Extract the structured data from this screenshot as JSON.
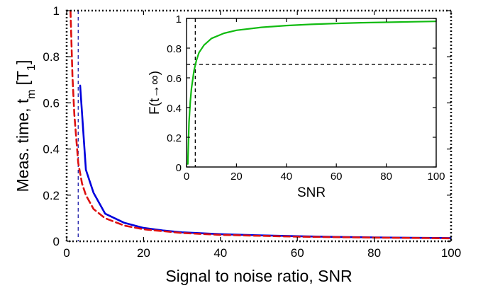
{
  "chart_data": [
    {
      "type": "line",
      "xlabel": "Signal to noise ratio, SNR",
      "ylabel": "Meas. time, t",
      "ylabel_sub": "m",
      "ylabel_unit": "T",
      "ylabel_unit_sub": "1",
      "xlim": [
        0,
        100
      ],
      "ylim": [
        0,
        1
      ],
      "xticks": [
        0,
        20,
        40,
        60,
        80,
        100
      ],
      "yticks": [
        0,
        0.2,
        0.4,
        0.6,
        0.8,
        1
      ],
      "xtick_labels": [
        "0",
        "20",
        "40",
        "60",
        "80",
        "100"
      ],
      "ytick_labels": [
        "0",
        "0.2",
        "0.4",
        "0.6",
        "0.8",
        "1"
      ],
      "grid": false,
      "vline": {
        "x": 3,
        "style": "dashed",
        "color": "#1a1aa8"
      },
      "series": [
        {
          "style": "solid",
          "color": "#0000dd",
          "x": [
            3.5,
            5,
            7,
            10,
            15,
            20,
            25,
            30,
            40,
            50,
            60,
            70,
            80,
            90,
            100
          ],
          "y": [
            0.675,
            0.31,
            0.21,
            0.12,
            0.08,
            0.058,
            0.047,
            0.039,
            0.031,
            0.026,
            0.022,
            0.019,
            0.017,
            0.015,
            0.014
          ]
        },
        {
          "style": "dashed",
          "color": "#dd1111",
          "x": [
            1,
            1.5,
            2,
            3,
            4,
            5,
            7,
            10,
            15,
            20,
            30,
            40,
            60,
            80,
            100
          ],
          "y": [
            1.0,
            0.72,
            0.55,
            0.34,
            0.25,
            0.2,
            0.14,
            0.1,
            0.068,
            0.052,
            0.036,
            0.028,
            0.02,
            0.016,
            0.013
          ]
        }
      ]
    },
    {
      "type": "line",
      "xlabel": "SNR",
      "ylabel": "F(t→∞)",
      "xlim": [
        0,
        100
      ],
      "ylim": [
        0,
        1
      ],
      "xticks": [
        0,
        20,
        40,
        60,
        80,
        100
      ],
      "yticks": [
        0,
        0.2,
        0.4,
        0.6,
        0.8,
        1
      ],
      "xtick_labels": [
        "0",
        "20",
        "40",
        "60",
        "80",
        "100"
      ],
      "ytick_labels": [
        "0",
        "0.2",
        "0.4",
        "0.6",
        "0.8",
        "1"
      ],
      "grid": false,
      "vline": {
        "x": 3.5,
        "style": "dashed",
        "color": "#000000"
      },
      "hline": {
        "y": 0.69,
        "style": "dashed",
        "color": "#000000"
      },
      "series": [
        {
          "style": "solid",
          "color": "#11bb11",
          "x": [
            0.5,
            1,
            1.5,
            2,
            3,
            4,
            5,
            7,
            10,
            15,
            20,
            30,
            40,
            50,
            60,
            70,
            80,
            90,
            100
          ],
          "y": [
            0.02,
            0.3,
            0.44,
            0.53,
            0.65,
            0.72,
            0.77,
            0.82,
            0.865,
            0.9,
            0.92,
            0.94,
            0.952,
            0.96,
            0.966,
            0.971,
            0.974,
            0.977,
            0.98
          ]
        }
      ]
    }
  ]
}
